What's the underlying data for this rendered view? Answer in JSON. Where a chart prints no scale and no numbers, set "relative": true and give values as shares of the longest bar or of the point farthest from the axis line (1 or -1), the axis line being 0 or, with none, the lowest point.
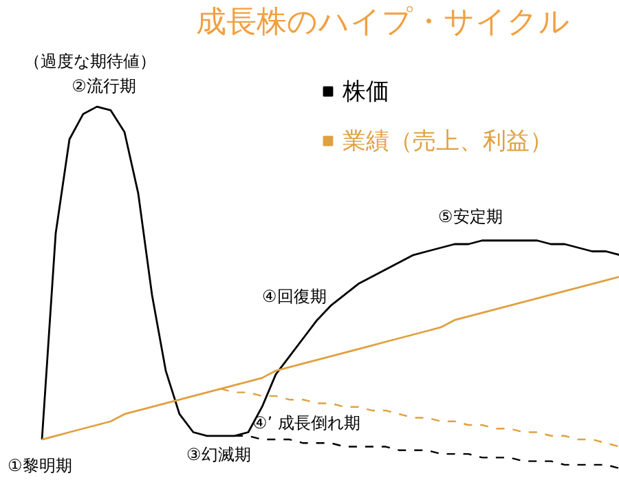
{
  "chart_data": {
    "type": "line",
    "title": "成長株のハイプ・サイクル",
    "relative": true,
    "legend": "top right",
    "grid": false,
    "categories": [
      null,
      null,
      null,
      null,
      null,
      null,
      null,
      null,
      null,
      null,
      null,
      null,
      null,
      null,
      null,
      null,
      null,
      null,
      null,
      null,
      null,
      null,
      null,
      null,
      null,
      null,
      null,
      null,
      null,
      null,
      null,
      null,
      null,
      null,
      null,
      null,
      null,
      null,
      null,
      null,
      null,
      null,
      null
    ],
    "series": [
      {
        "name": "株価",
        "color": "#000000",
        "line_style": "solid",
        "values": [
          0.08,
          0.65,
          0.91,
          0.98,
          1.0,
          0.99,
          0.93,
          0.76,
          0.48,
          0.27,
          0.15,
          0.1,
          0.09,
          0.09,
          0.09,
          0.1,
          0.17,
          0.26,
          0.31,
          0.36,
          0.41,
          0.45,
          0.48,
          0.51,
          0.53,
          0.55,
          0.57,
          0.59,
          0.6,
          0.61,
          0.62,
          0.62,
          0.63,
          0.63,
          0.63,
          0.63,
          0.63,
          0.62,
          0.62,
          0.61,
          0.6,
          0.6,
          0.59
        ]
      },
      {
        "name": "業績（売上、利益）",
        "color": "#e0a040",
        "line_style": "solid",
        "values": [
          0.08,
          0.09,
          0.1,
          0.11,
          0.12,
          0.13,
          0.15,
          0.16,
          0.17,
          0.18,
          0.19,
          0.2,
          0.21,
          0.22,
          0.23,
          0.24,
          0.25,
          0.27,
          0.28,
          0.29,
          0.3,
          0.31,
          0.32,
          0.33,
          0.34,
          0.35,
          0.36,
          0.37,
          0.38,
          0.39,
          0.41,
          0.42,
          0.43,
          0.44,
          0.45,
          0.46,
          0.47,
          0.48,
          0.49,
          0.5,
          0.51,
          0.52,
          0.53
        ]
      },
      {
        "color": "#e0a040",
        "line_style": "dashed",
        "values": [
          null,
          null,
          null,
          null,
          null,
          null,
          null,
          null,
          null,
          null,
          null,
          null,
          null,
          0.22,
          0.21,
          0.21,
          0.2,
          0.2,
          0.19,
          0.19,
          0.18,
          0.18,
          0.17,
          0.17,
          0.16,
          0.16,
          0.15,
          0.14,
          0.14,
          0.13,
          0.13,
          0.12,
          0.12,
          0.11,
          0.11,
          0.1,
          0.1,
          0.09,
          0.09,
          0.08,
          0.08,
          0.07,
          0.06
        ]
      },
      {
        "color": "#000000",
        "line_style": "dashed",
        "values": [
          null,
          null,
          null,
          null,
          null,
          null,
          null,
          null,
          null,
          null,
          null,
          null,
          null,
          null,
          0.09,
          0.09,
          0.08,
          0.08,
          0.08,
          0.07,
          0.07,
          0.07,
          0.06,
          0.06,
          0.06,
          0.06,
          0.05,
          0.05,
          0.05,
          0.04,
          0.04,
          0.04,
          0.03,
          0.03,
          0.03,
          0.02,
          0.02,
          0.02,
          0.01,
          0.01,
          0.01,
          0.01,
          0.0
        ]
      }
    ],
    "annotations": [
      "（過度な期待値）",
      "②流行期",
      "①黎明期",
      "③幻滅期",
      "④回復期",
      "④’ 成長倒れ期",
      "⑤安定期"
    ]
  }
}
